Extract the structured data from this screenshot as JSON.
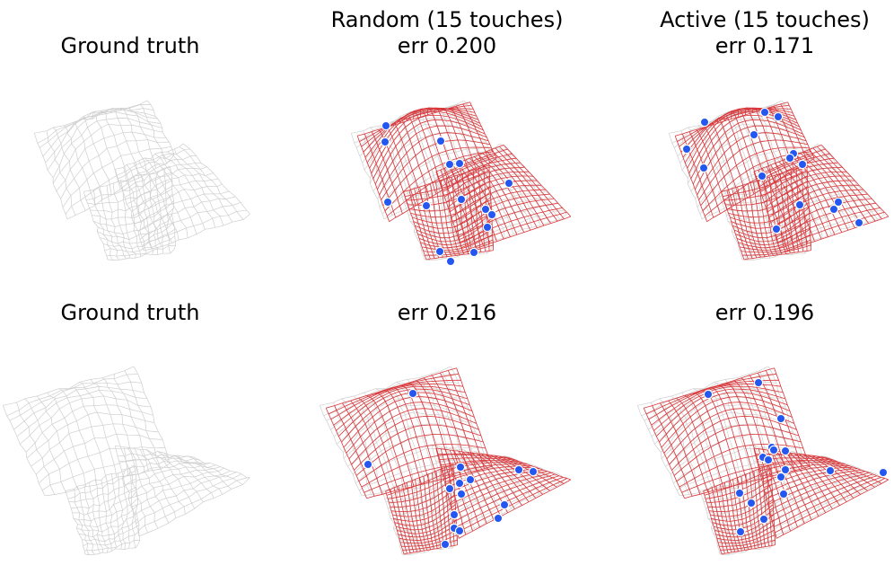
{
  "colors": {
    "ground_truth": "#cfcfcf",
    "reconstruction": "#d9363a",
    "touch": "#2456f0"
  },
  "panels": [
    {
      "key": "r1c1",
      "title_lines": [
        "",
        "Ground truth"
      ],
      "show_recon": false,
      "touches": 0
    },
    {
      "key": "r1c2",
      "title_lines": [
        "Random (15 touches)",
        "err 0.200"
      ],
      "show_recon": true,
      "touches": 15
    },
    {
      "key": "r1c3",
      "title_lines": [
        "Active (15 touches)",
        "err 0.171"
      ],
      "show_recon": true,
      "touches": 15
    },
    {
      "key": "r2c1",
      "title_lines": [
        "",
        "Ground truth"
      ],
      "show_recon": false,
      "touches": 0
    },
    {
      "key": "r2c2",
      "title_lines": [
        "",
        "err 0.216"
      ],
      "show_recon": true,
      "touches": 15
    },
    {
      "key": "r2c3",
      "title_lines": [
        "",
        "err 0.196"
      ],
      "show_recon": true,
      "touches": 15
    }
  ]
}
